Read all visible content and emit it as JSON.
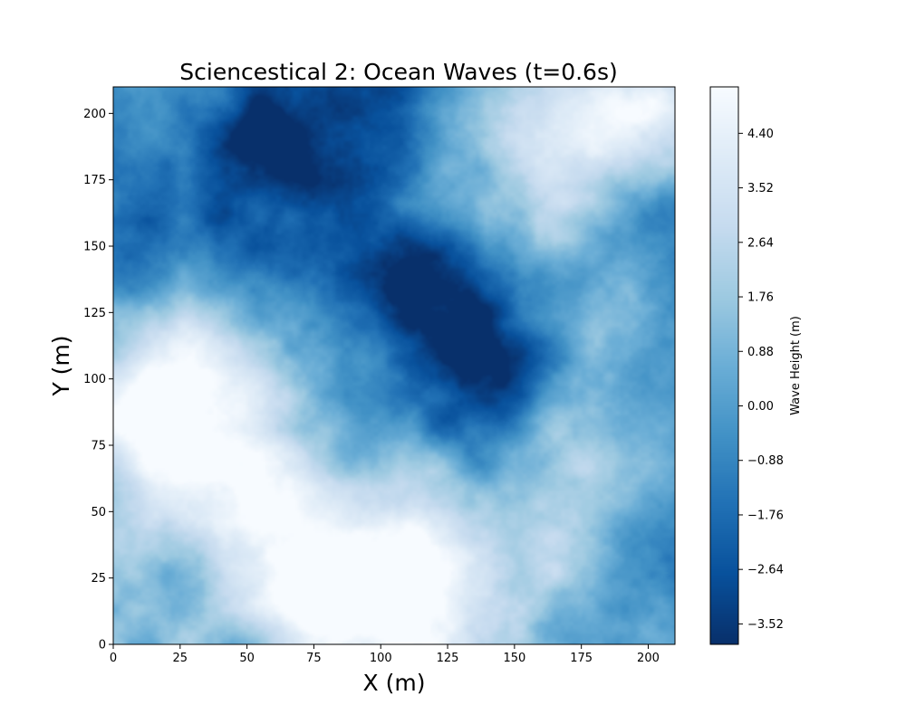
{
  "chart_data": {
    "type": "heatmap",
    "title": "Sciencestical 2:  Ocean Waves (t=0.6s)",
    "xlabel": "X (m)",
    "ylabel": "Y (m)",
    "xlim": [
      0,
      210
    ],
    "ylim": [
      0,
      210
    ],
    "x_ticks": [
      0,
      25,
      50,
      75,
      100,
      125,
      150,
      175,
      200
    ],
    "y_ticks": [
      0,
      25,
      50,
      75,
      100,
      125,
      150,
      175,
      200
    ],
    "colormap": "Blues_r",
    "colorbar": {
      "label": "Wave Height (m)",
      "range": [
        -3.85,
        5.15
      ],
      "ticks": [
        -3.52,
        -2.64,
        -1.76,
        -0.88,
        0.0,
        0.88,
        1.76,
        2.64,
        3.52,
        4.4
      ],
      "tick_labels": [
        "−3.52",
        "−2.64",
        "−1.76",
        "−0.88",
        "0.00",
        "0.88",
        "1.76",
        "2.64",
        "3.52",
        "4.40"
      ]
    },
    "features": [
      {
        "kind": "crest",
        "x": 40,
        "y": 75,
        "radius": 38,
        "height": 4.6
      },
      {
        "kind": "crest",
        "x": 15,
        "y": 95,
        "radius": 22,
        "height": 3.0
      },
      {
        "kind": "crest",
        "x": 115,
        "y": 20,
        "radius": 30,
        "height": 4.8
      },
      {
        "kind": "crest",
        "x": 80,
        "y": 10,
        "radius": 22,
        "height": 3.0
      },
      {
        "kind": "crest",
        "x": 175,
        "y": 185,
        "radius": 32,
        "height": 3.5
      },
      {
        "kind": "crest",
        "x": 195,
        "y": 205,
        "radius": 18,
        "height": 2.5
      },
      {
        "kind": "crest",
        "x": 170,
        "y": 60,
        "radius": 25,
        "height": 2.2
      },
      {
        "kind": "crest",
        "x": 60,
        "y": 30,
        "radius": 18,
        "height": 2.0
      },
      {
        "kind": "crest",
        "x": 185,
        "y": 120,
        "radius": 12,
        "height": 1.2
      },
      {
        "kind": "trough",
        "x": 65,
        "y": 180,
        "radius": 26,
        "height": -3.2
      },
      {
        "kind": "trough",
        "x": 125,
        "y": 120,
        "radius": 20,
        "height": -3.0
      },
      {
        "kind": "trough",
        "x": 145,
        "y": 95,
        "radius": 18,
        "height": -2.6
      },
      {
        "kind": "trough",
        "x": 110,
        "y": 140,
        "radius": 22,
        "height": -2.5
      },
      {
        "kind": "trough",
        "x": 100,
        "y": 205,
        "radius": 20,
        "height": -2.4
      },
      {
        "kind": "trough",
        "x": 30,
        "y": 150,
        "radius": 20,
        "height": -1.9
      },
      {
        "kind": "trough",
        "x": 200,
        "y": 160,
        "radius": 16,
        "height": -2.0
      },
      {
        "kind": "trough",
        "x": 200,
        "y": 30,
        "radius": 18,
        "height": -1.6
      },
      {
        "kind": "trough",
        "x": 90,
        "y": 80,
        "radius": 22,
        "height": -1.4
      }
    ]
  }
}
